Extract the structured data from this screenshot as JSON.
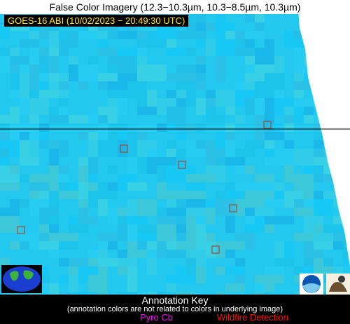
{
  "header": {
    "title": "False Color Imagery (12.3−10.3µm, 10.3−8.5µm, 10.3µm)",
    "timestamp": "GOES-16 ABI (10/02/2023 − 20:49:30 UTC)"
  },
  "annotation_key": {
    "heading": "Annotation Key",
    "note": "(annotation colors are not related to colors in underlying image)",
    "items": [
      "Pyro Cb",
      "Wildfire Detection"
    ]
  }
}
